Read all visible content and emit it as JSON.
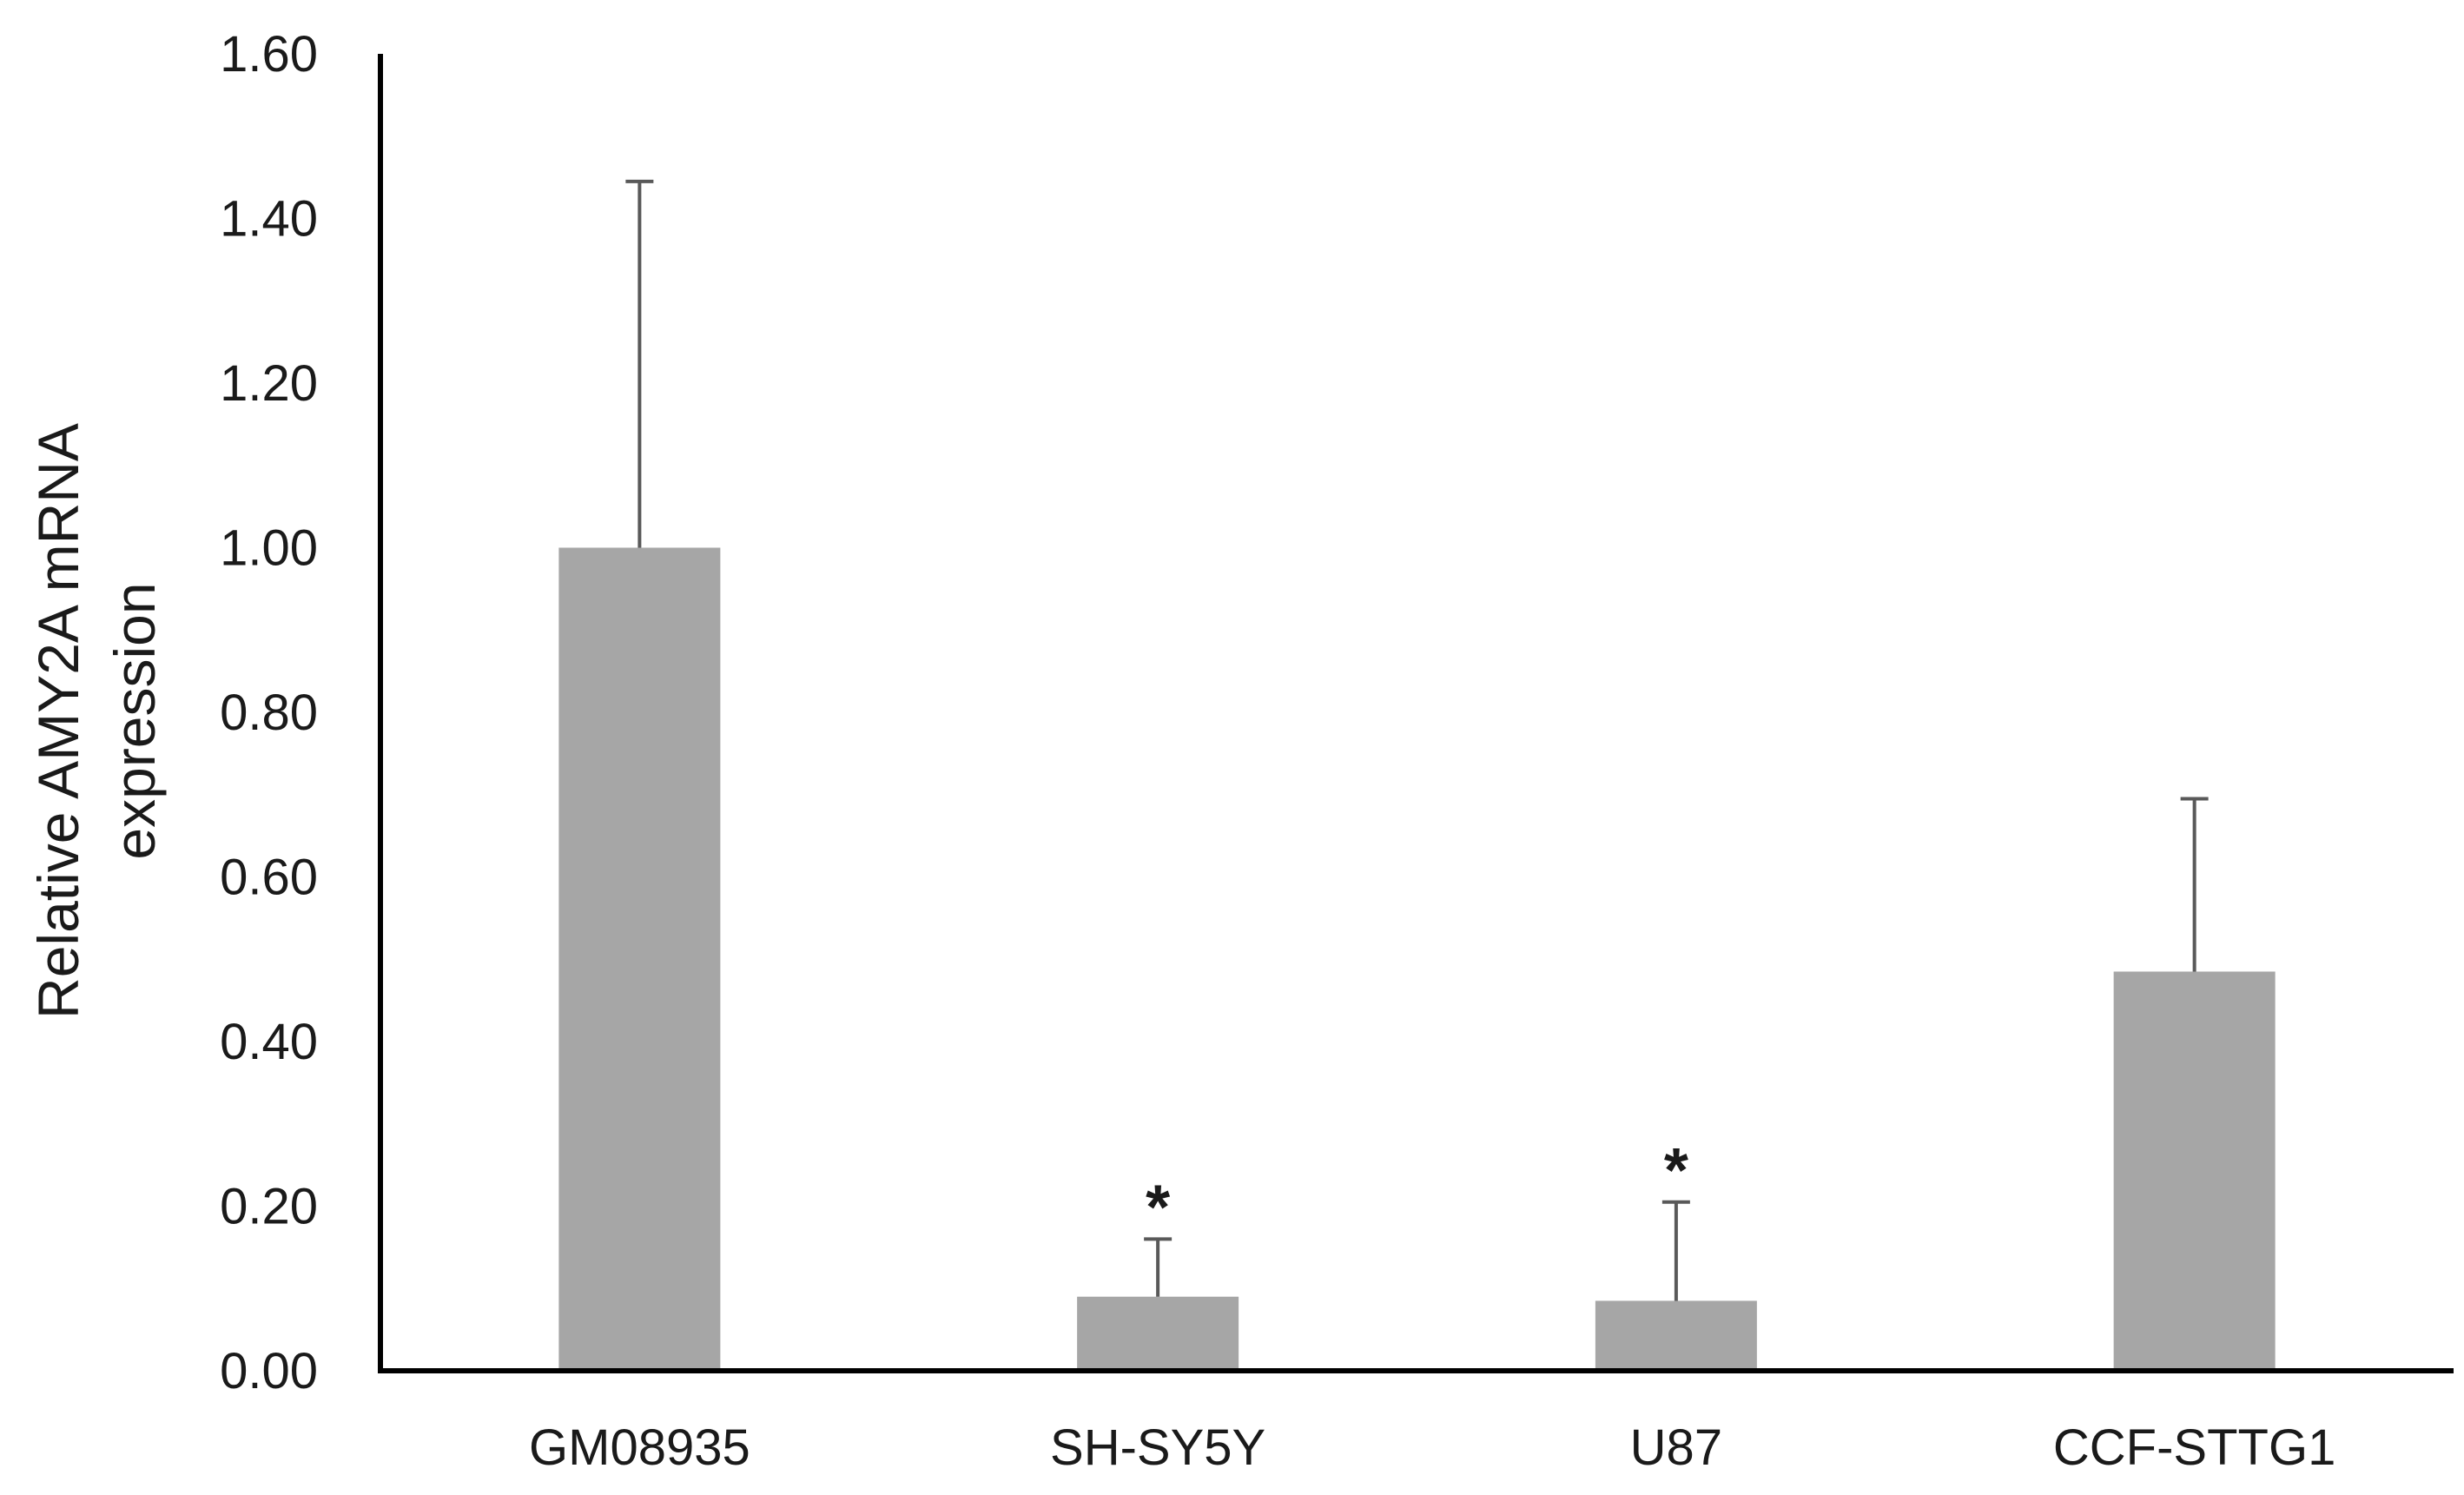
{
  "chart_data": {
    "type": "bar",
    "title": "",
    "ylabel_lines": [
      "Relative AMY2A mRNA",
      "expression"
    ],
    "xlabel": "",
    "ylim": [
      0,
      1.6
    ],
    "yticks": [
      "0.00",
      "0.20",
      "0.40",
      "0.60",
      "0.80",
      "1.00",
      "1.20",
      "1.40",
      "1.60"
    ],
    "categories": [
      "GM08935",
      "SH-SY5Y",
      "U87",
      "CCF-STTG1"
    ],
    "values": [
      1.0,
      0.09,
      0.085,
      0.485
    ],
    "error_upper": [
      0.445,
      0.07,
      0.12,
      0.21
    ],
    "annotations": [
      "",
      "*",
      "*",
      ""
    ],
    "bar_color": "#a6a6a6",
    "error_color": "#595959",
    "axis_color": "#000000",
    "grid": false,
    "legend": "none"
  }
}
